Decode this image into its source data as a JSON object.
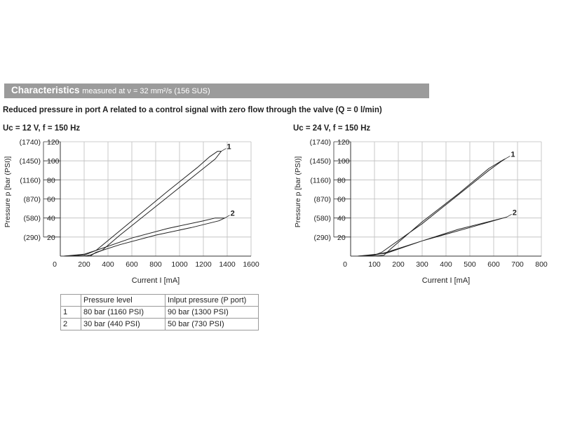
{
  "header": {
    "title": "Characteristics",
    "subtitle": "measured at ν = 32 mm²/s (156 SUS)"
  },
  "description": "Reduced pressure in port A related to a control signal with zero flow through the valve (Q = 0 l/min)",
  "chart_data": [
    {
      "type": "line",
      "title": "Uc = 12 V, f = 150 Hz",
      "xlabel": "Current I [mA]",
      "ylabel": "Pressure p [bar (PSI)]",
      "xlim": [
        0,
        1600
      ],
      "ylim": [
        0,
        120
      ],
      "x_ticks": [
        0,
        200,
        400,
        600,
        800,
        1000,
        1200,
        1400,
        1600
      ],
      "y_ticks": [
        20,
        40,
        60,
        80,
        100,
        120
      ],
      "y_ticks_psi": [
        "(290)",
        "(580)",
        "(870)",
        "(1160)",
        "(1450)",
        "(1740)"
      ],
      "grid": true,
      "series": [
        {
          "name": "1",
          "x": [
            30,
            200,
            300,
            600,
            900,
            1150,
            1250,
            1320,
            1350,
            1300,
            1100,
            850,
            500,
            350,
            250,
            200,
            30
          ],
          "y": [
            0,
            1,
            6,
            37,
            68,
            93,
            104,
            110,
            110,
            102,
            82,
            57,
            22,
            6,
            1,
            0,
            0
          ]
        },
        {
          "name": "2",
          "x": [
            30,
            200,
            300,
            600,
            900,
            1200,
            1300,
            1380,
            1330,
            1100,
            800,
            500,
            300,
            250,
            30
          ],
          "y": [
            0,
            2,
            6,
            19,
            29,
            37,
            40,
            40,
            37,
            30,
            22,
            12,
            4,
            0,
            0
          ]
        }
      ]
    },
    {
      "type": "line",
      "title": "Uc = 24 V, f = 150 Hz",
      "xlabel": "Current I [mA]",
      "ylabel": "Pressure p [bar (PSI)]",
      "xlim": [
        0,
        800
      ],
      "ylim": [
        0,
        120
      ],
      "x_ticks": [
        0,
        100,
        200,
        300,
        400,
        500,
        600,
        700,
        800
      ],
      "y_ticks": [
        20,
        40,
        60,
        80,
        100,
        120
      ],
      "y_ticks_psi": [
        "(290)",
        "(580)",
        "(870)",
        "(1160)",
        "(1450)",
        "(1740)"
      ],
      "grid": true,
      "series": [
        {
          "name": "1",
          "x": [
            30,
            100,
            130,
            300,
            450,
            580,
            630,
            648,
            640,
            580,
            450,
            300,
            170,
            140,
            100,
            30
          ],
          "y": [
            0,
            1,
            4,
            34,
            64,
            90,
            99,
            102,
            101,
            92,
            65,
            36,
            8,
            1,
            0,
            0
          ]
        },
        {
          "name": "2",
          "x": [
            30,
            100,
            150,
            300,
            500,
            655,
            640,
            450,
            300,
            150,
            30
          ],
          "y": [
            0,
            1,
            4,
            16,
            30,
            41,
            40,
            28,
            16,
            3,
            0
          ]
        }
      ]
    }
  ],
  "table": {
    "headers": [
      "",
      "Pressure level",
      "Inlput pressure (P port)"
    ],
    "rows": [
      [
        "1",
        "80 bar (1160 PSI)",
        "90 bar (1300 PSI)"
      ],
      [
        "2",
        "30 bar (440 PSI)",
        "50 bar (730 PSI)"
      ]
    ]
  }
}
